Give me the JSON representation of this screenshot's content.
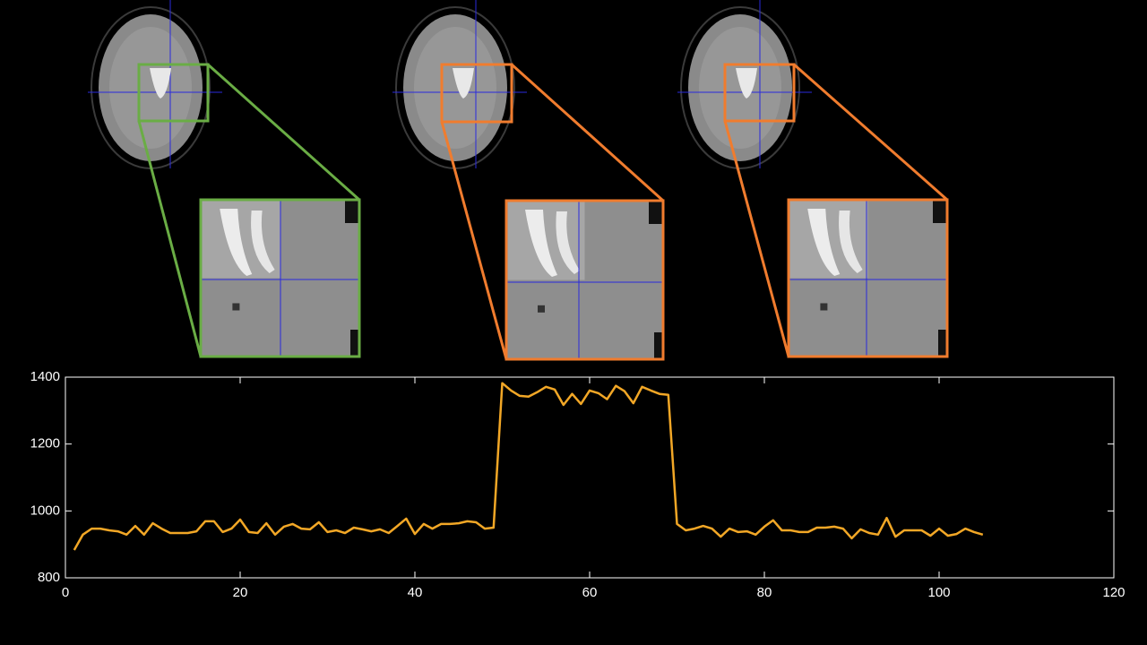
{
  "chart_data": {
    "type": "line",
    "x": [
      1,
      2,
      3,
      4,
      5,
      6,
      7,
      8,
      9,
      10,
      11,
      12,
      13,
      14,
      15,
      16,
      17,
      18,
      19,
      20,
      21,
      22,
      23,
      24,
      25,
      26,
      27,
      28,
      29,
      30,
      31,
      32,
      33,
      34,
      35,
      36,
      37,
      38,
      39,
      40,
      41,
      42,
      43,
      44,
      45,
      46,
      47,
      48,
      49,
      50,
      51,
      52,
      53,
      54,
      55,
      56,
      57,
      58,
      59,
      60,
      61,
      62,
      63,
      64,
      65,
      66,
      67,
      68,
      69,
      70,
      71,
      72,
      73,
      74,
      75,
      76,
      77,
      78,
      79,
      80,
      81,
      82,
      83,
      84,
      85,
      86,
      87,
      88,
      89,
      90,
      91,
      92,
      93,
      94,
      95,
      96,
      97,
      98,
      99,
      100,
      101,
      102,
      103,
      104,
      105
    ],
    "values": [
      883,
      929,
      947,
      947,
      942,
      939,
      929,
      955,
      929,
      963,
      947,
      934,
      934,
      934,
      939,
      969,
      969,
      937,
      947,
      974,
      937,
      934,
      963,
      929,
      953,
      961,
      947,
      945,
      966,
      937,
      942,
      934,
      950,
      945,
      939,
      945,
      934,
      955,
      977,
      931,
      961,
      947,
      961,
      961,
      963,
      969,
      966,
      947,
      950,
      1382,
      1360,
      1344,
      1342,
      1355,
      1371,
      1363,
      1317,
      1350,
      1320,
      1360,
      1352,
      1334,
      1374,
      1358,
      1322,
      1371,
      1360,
      1350,
      1347,
      961,
      942,
      947,
      955,
      947,
      923,
      947,
      937,
      939,
      929,
      953,
      972,
      942,
      942,
      937,
      937,
      950,
      950,
      953,
      947,
      918,
      945,
      934,
      929,
      979,
      923,
      942,
      942,
      942,
      926,
      947,
      926,
      931,
      947,
      937,
      929
    ],
    "color": "#f2a726",
    "xlim": [
      0,
      120
    ],
    "xticks": [
      0,
      20,
      40,
      60,
      80,
      100,
      120
    ],
    "ylim": [
      800,
      1400
    ],
    "yticks": [
      800,
      1000,
      1200,
      1400
    ]
  }
}
